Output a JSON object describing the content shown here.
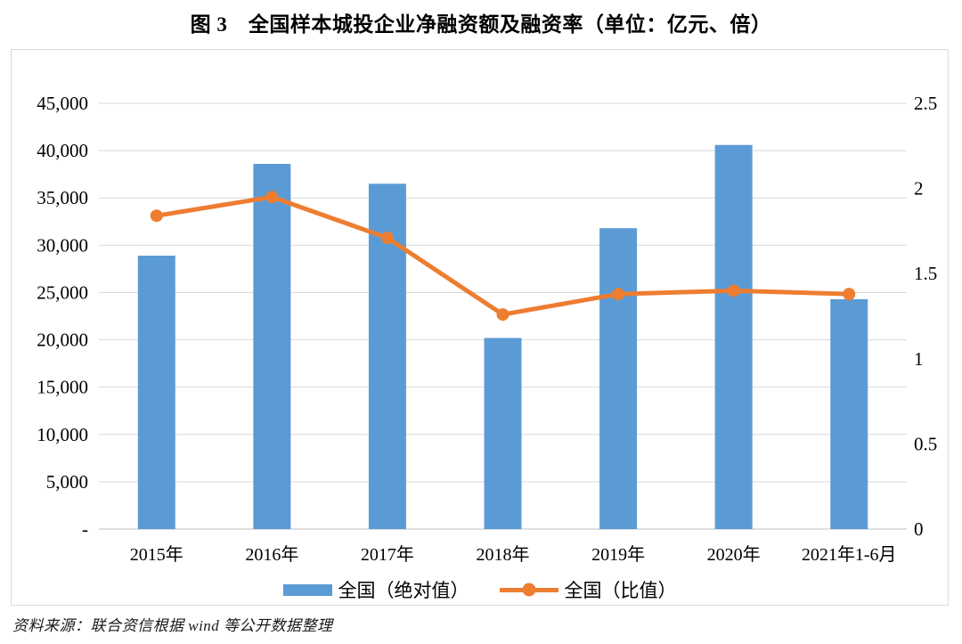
{
  "title": "图 3　全国样本城投企业净融资额及融资率（单位：亿元、倍）",
  "source_note": "资料来源：联合资信根据 wind 等公开数据整理",
  "colors": {
    "bar": "#5B9BD5",
    "line": "#ED7D31",
    "grid": "#D9D9D9",
    "axis_line": "#BFBFBF",
    "box_border": "#D6DCE4",
    "text": "#000000"
  },
  "chart_data": {
    "type": "combo",
    "title": "图 3　全国样本城投企业净融资额及融资率（单位：亿元、倍）",
    "categories": [
      "2015年",
      "2016年",
      "2017年",
      "2018年",
      "2019年",
      "2020年",
      "2021年1-6月"
    ],
    "series": [
      {
        "name": "全国（绝对值）",
        "type": "bar",
        "axis": "left",
        "unit": "亿元",
        "color": "#5B9BD5",
        "values": [
          28900,
          38600,
          36500,
          20200,
          31800,
          40600,
          24300
        ]
      },
      {
        "name": "全国（比值）",
        "type": "line",
        "axis": "right",
        "unit": "倍",
        "color": "#ED7D31",
        "values": [
          1.84,
          1.95,
          1.71,
          1.26,
          1.38,
          1.4,
          1.38
        ]
      }
    ],
    "left_axis": {
      "min": 0,
      "max": 45000,
      "step": 5000,
      "tick_labels": [
        "-",
        "5,000",
        "10,000",
        "15,000",
        "20,000",
        "25,000",
        "30,000",
        "35,000",
        "40,000",
        "45,000"
      ]
    },
    "right_axis": {
      "min": 0,
      "max": 2.5,
      "step": 0.5,
      "tick_labels": [
        "0",
        "0.5",
        "1",
        "1.5",
        "2",
        "2.5"
      ]
    },
    "grid": true,
    "legend_position": "bottom"
  }
}
